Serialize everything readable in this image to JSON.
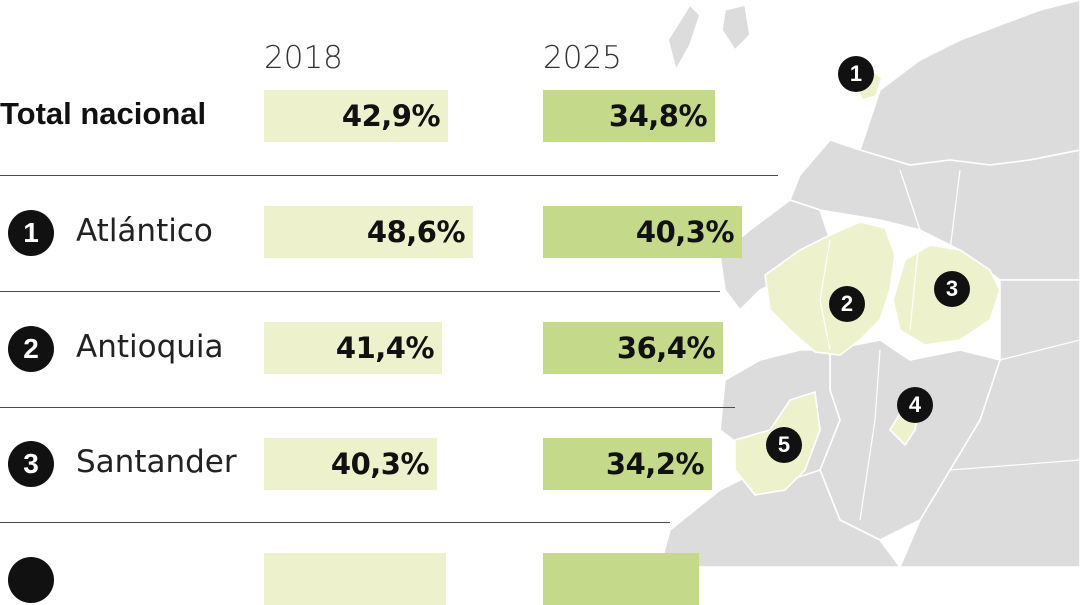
{
  "chart_data": {
    "type": "bar",
    "categories": [
      "Total nacional",
      "Atlántico",
      "Antioquia",
      "Santander",
      ""
    ],
    "series": [
      {
        "name": "2018",
        "values": [
          42.9,
          48.6,
          41.4,
          40.3,
          null
        ]
      },
      {
        "name": "2025",
        "values": [
          34.8,
          40.3,
          36.4,
          34.2,
          null
        ]
      }
    ],
    "value_labels_2018": [
      "42,9%",
      "48,6%",
      "41,4%",
      "40,3%",
      ""
    ],
    "value_labels_2025": [
      "34,8%",
      "40,3%",
      "36,4%",
      "34,2%",
      ""
    ],
    "unit": "%"
  },
  "headers": {
    "year_2018": "2018",
    "year_2025": "2025"
  },
  "total": {
    "label": "Total nacional"
  },
  "rows": [
    {
      "number": "1",
      "label": "Atlántico"
    },
    {
      "number": "2",
      "label": "Antioquia"
    },
    {
      "number": "3",
      "label": "Santander"
    },
    {
      "number": "",
      "label": ""
    }
  ],
  "map_markers": [
    "1",
    "2",
    "3",
    "4",
    "5"
  ],
  "colors": {
    "bar_2018": "#eef2cc",
    "bar_2025": "#c5d98a",
    "map_land": "#dcdcdc",
    "map_highlight": "#eef2cc",
    "marker": "#111111"
  }
}
